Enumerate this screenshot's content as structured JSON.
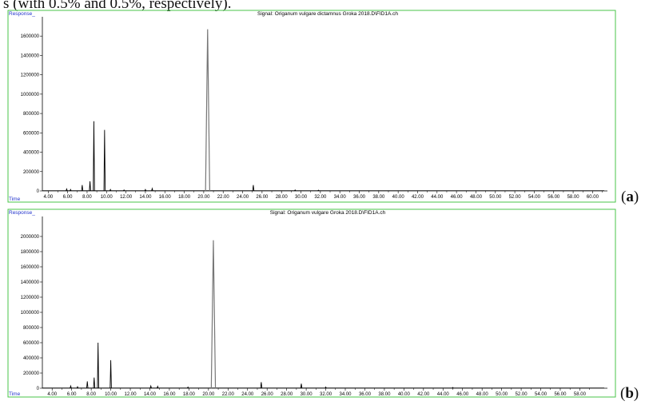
{
  "caption": "s (with 0.5% and 0.5%, respectively).",
  "chart_data": [
    {
      "type": "line",
      "panel_label": "a",
      "signal": "Signal: Origanum vulgare dictamnus Groka 2018.D\\FID1A.ch",
      "ylabel": "Response_",
      "xlabel": "Time",
      "y_ticks": [
        0,
        200000,
        400000,
        600000,
        800000,
        1000000,
        1200000,
        1400000,
        1600000
      ],
      "x_ticks": [
        "4.00",
        "6.00",
        "8.00",
        "10.00",
        "12.00",
        "14.00",
        "16.00",
        "18.00",
        "20.00",
        "22.00",
        "24.00",
        "26.00",
        "28.00",
        "30.00",
        "32.00",
        "34.00",
        "36.00",
        "38.00",
        "40.00",
        "42.00",
        "44.00",
        "46.00",
        "48.00",
        "50.00",
        "52.00",
        "54.00",
        "56.00",
        "58.00",
        "60.00"
      ],
      "xlim": [
        3.4,
        61.2
      ],
      "ylim": [
        0,
        1750000
      ],
      "peaks": [
        {
          "x": 5.9,
          "y": 20000
        },
        {
          "x": 6.3,
          "y": 15000
        },
        {
          "x": 7.5,
          "y": 60000
        },
        {
          "x": 8.3,
          "y": 100000
        },
        {
          "x": 8.7,
          "y": 720000
        },
        {
          "x": 9.8,
          "y": 630000
        },
        {
          "x": 10.4,
          "y": 15000
        },
        {
          "x": 11.8,
          "y": 10000
        },
        {
          "x": 14.0,
          "y": 15000
        },
        {
          "x": 14.7,
          "y": 25000
        },
        {
          "x": 20.4,
          "y": 1670000
        },
        {
          "x": 25.1,
          "y": 60000
        },
        {
          "x": 29.4,
          "y": 10000
        },
        {
          "x": 31.8,
          "y": 8000
        }
      ]
    },
    {
      "type": "line",
      "panel_label": "b",
      "signal": "Signal: Origanum vulgare Groka 2018.D\\FID1A.ch",
      "ylabel": "Response_",
      "xlabel": "Time",
      "y_ticks": [
        0,
        200000,
        400000,
        600000,
        800000,
        1000000,
        1200000,
        1400000,
        1600000,
        1800000,
        2000000
      ],
      "x_ticks": [
        "4.00",
        "6.00",
        "8.00",
        "10.00",
        "12.00",
        "14.00",
        "16.00",
        "18.00",
        "20.00",
        "22.00",
        "24.00",
        "26.00",
        "28.00",
        "30.00",
        "32.00",
        "34.00",
        "36.00",
        "38.00",
        "40.00",
        "42.00",
        "44.00",
        "46.00",
        "48.00",
        "50.00",
        "52.00",
        "54.00",
        "56.00",
        "58.00"
      ],
      "xlim": [
        3.0,
        60.5
      ],
      "ylim": [
        0,
        2200000
      ],
      "peaks": [
        {
          "x": 5.9,
          "y": 30000
        },
        {
          "x": 6.6,
          "y": 20000
        },
        {
          "x": 7.6,
          "y": 90000
        },
        {
          "x": 8.3,
          "y": 140000
        },
        {
          "x": 8.7,
          "y": 600000
        },
        {
          "x": 10.0,
          "y": 370000
        },
        {
          "x": 14.1,
          "y": 30000
        },
        {
          "x": 14.8,
          "y": 25000
        },
        {
          "x": 17.9,
          "y": 15000
        },
        {
          "x": 20.5,
          "y": 1950000
        },
        {
          "x": 25.4,
          "y": 80000
        },
        {
          "x": 29.5,
          "y": 60000
        },
        {
          "x": 32.0,
          "y": 15000
        },
        {
          "x": 45.0,
          "y": 10000
        }
      ]
    }
  ]
}
